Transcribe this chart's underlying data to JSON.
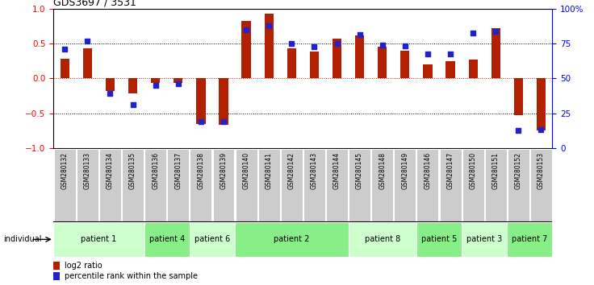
{
  "title": "GDS3697 / 3531",
  "samples": [
    "GSM280132",
    "GSM280133",
    "GSM280134",
    "GSM280135",
    "GSM280136",
    "GSM280137",
    "GSM280138",
    "GSM280139",
    "GSM280140",
    "GSM280141",
    "GSM280142",
    "GSM280143",
    "GSM280144",
    "GSM280145",
    "GSM280148",
    "GSM280149",
    "GSM280146",
    "GSM280147",
    "GSM280150",
    "GSM280151",
    "GSM280152",
    "GSM280153"
  ],
  "log2_ratio": [
    0.28,
    0.43,
    -0.18,
    -0.22,
    -0.07,
    -0.06,
    -0.65,
    -0.66,
    0.82,
    0.93,
    0.43,
    0.38,
    0.57,
    0.62,
    0.45,
    0.4,
    0.2,
    0.25,
    0.27,
    0.72,
    -0.53,
    -0.75
  ],
  "percentile_rank": [
    0.42,
    0.53,
    -0.22,
    -0.38,
    -0.1,
    -0.08,
    -0.62,
    -0.62,
    0.7,
    0.75,
    0.5,
    0.45,
    0.5,
    0.63,
    0.48,
    0.47,
    0.35,
    0.35,
    0.65,
    0.67,
    -0.75,
    -0.73
  ],
  "patients": [
    {
      "label": "patient 1",
      "start": 0,
      "end": 4
    },
    {
      "label": "patient 4",
      "start": 4,
      "end": 6
    },
    {
      "label": "patient 6",
      "start": 6,
      "end": 8
    },
    {
      "label": "patient 2",
      "start": 8,
      "end": 13
    },
    {
      "label": "patient 8",
      "start": 13,
      "end": 16
    },
    {
      "label": "patient 5",
      "start": 16,
      "end": 18
    },
    {
      "label": "patient 3",
      "start": 18,
      "end": 20
    },
    {
      "label": "patient 7",
      "start": 20,
      "end": 22
    }
  ],
  "bar_color": "#B22000",
  "dot_color": "#2222CC",
  "bg_color": "#FFFFFF",
  "patient_bg_light": "#CCFFCC",
  "patient_bg_dark": "#88EE88",
  "sample_bg": "#CCCCCC",
  "ylim": [
    -1,
    1
  ],
  "yticks_left": [
    -1,
    -0.5,
    0,
    0.5,
    1
  ],
  "yticks_right": [
    0,
    25,
    50,
    75,
    100
  ],
  "legend_items": [
    "log2 ratio",
    "percentile rank within the sample"
  ]
}
